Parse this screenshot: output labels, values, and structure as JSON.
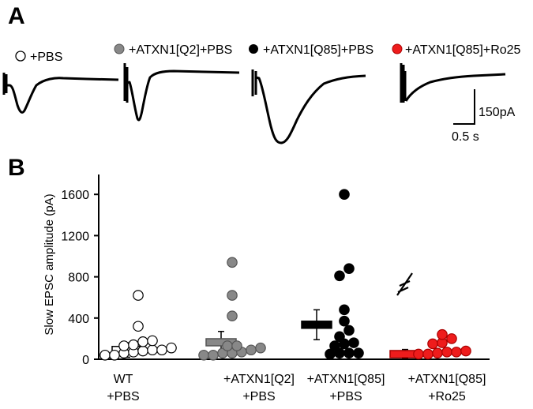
{
  "panel_a": {
    "label": "A",
    "legend": [
      {
        "label": "+PBS",
        "color": "#ffffff"
      },
      {
        "label": "+ATXN1[Q2]+PBS",
        "color": "#888888"
      },
      {
        "label": "+ATXN1[Q85]+PBS",
        "color": "#000000"
      },
      {
        "label": "+ATXN1[Q85]+Ro25",
        "color": "#ee1c1c"
      }
    ],
    "scale_y_label": "150pA",
    "scale_x_label": "0.5 s"
  },
  "panel_b": {
    "label": "B",
    "ylabel": "Slow EPSC amplitude (pA)"
  },
  "chart_data": {
    "type": "scatter",
    "xlabel": "",
    "ylabel": "Slow EPSC amplitude (pA)",
    "ylim": [
      0,
      1800
    ],
    "yticks": [
      0,
      400,
      800,
      1200,
      1600
    ],
    "grid": false,
    "groups": [
      {
        "line1": "WT",
        "line2": "+PBS",
        "color": "#ffffff",
        "mean": 90,
        "err_low": 20,
        "err_high": 160,
        "points": [
          40,
          70,
          90,
          130,
          180,
          110,
          140,
          80,
          320,
          620,
          170,
          60,
          90,
          40
        ]
      },
      {
        "line1": "+ATXN1[Q2]",
        "line2": "+PBS",
        "color": "#888888",
        "mean": 165,
        "err_low": 60,
        "err_high": 270,
        "points": [
          90,
          110,
          60,
          40,
          130,
          420,
          620,
          940,
          40,
          60,
          130,
          70
        ]
      },
      {
        "line1": "+ATXN1[Q85]",
        "line2": "+PBS",
        "color": "#000000",
        "mean": 335,
        "err_low": 190,
        "err_high": 480,
        "points": [
          160,
          280,
          60,
          50,
          220,
          480,
          810,
          880,
          1600,
          370,
          130,
          60,
          150,
          60
        ]
      },
      {
        "line1": "+ATXN1[Q85]",
        "line2": "+Ro25",
        "color": "#ee1c1c",
        "mean": 50,
        "err_low": 10,
        "err_high": 95,
        "points": [
          70,
          60,
          50,
          80,
          150,
          200,
          240,
          160,
          50,
          70
        ]
      }
    ]
  }
}
